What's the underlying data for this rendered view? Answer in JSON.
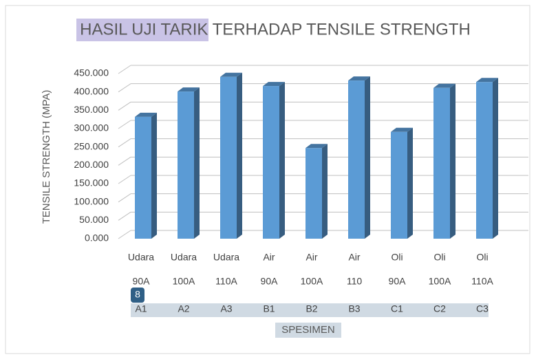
{
  "chart_data": {
    "type": "bar3d",
    "title": "HASIL UJI TARIK TERHADAP TENSILE STRENGTH",
    "y_label": "TENSILE STRENGTH (MPA)",
    "x_label": "SPESIMEN",
    "badge": "8",
    "categories": [
      [
        "Udara",
        "90A",
        "A1"
      ],
      [
        "Udara",
        "100A",
        "A2"
      ],
      [
        "Udara",
        "110A",
        "A3"
      ],
      [
        "Air",
        "90A",
        "B1"
      ],
      [
        "Air",
        "100A",
        "B2"
      ],
      [
        "Air",
        "110",
        "B3"
      ],
      [
        "Oli",
        "90A",
        "C1"
      ],
      [
        "Oli",
        "100A",
        "C2"
      ],
      [
        "Oli",
        "110A",
        "C3"
      ]
    ],
    "values": [
      332,
      401,
      441,
      416,
      247,
      431,
      291,
      411,
      427
    ],
    "color": "#5b9bd5",
    "ylim": [
      0,
      450
    ],
    "yticks": [
      {
        "value": 0,
        "label": "0.000"
      },
      {
        "value": 50,
        "label": "50.000"
      },
      {
        "value": 100,
        "label": "100.000"
      },
      {
        "value": 150,
        "label": "150.000"
      },
      {
        "value": 200,
        "label": "200.000"
      },
      {
        "value": 250,
        "label": "250.000"
      },
      {
        "value": 300,
        "label": "300.000"
      },
      {
        "value": 350,
        "label": "350.000"
      },
      {
        "value": 400,
        "label": "400.000"
      },
      {
        "value": 450,
        "label": "450.000"
      }
    ],
    "grid": true
  }
}
